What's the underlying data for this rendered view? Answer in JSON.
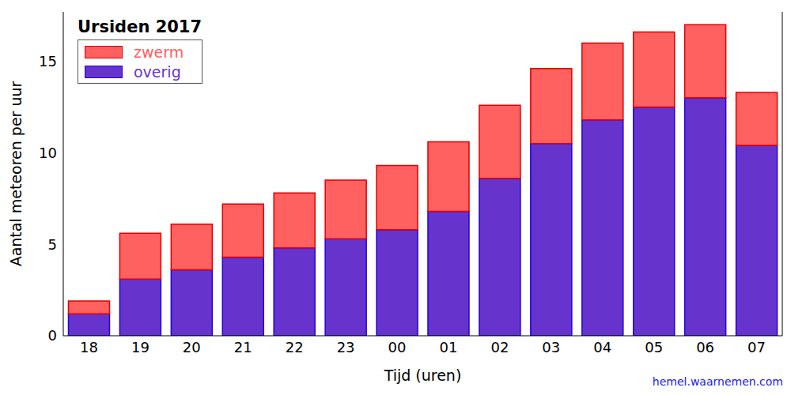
{
  "chart_data": {
    "type": "bar",
    "title": "Ursiden 2017",
    "x_label": "Tijd (uren)",
    "y_label": "Aantal meteoren per uur",
    "source": "hemel.waarnemen.com",
    "categories": [
      "18",
      "19",
      "20",
      "21",
      "22",
      "23",
      "00",
      "01",
      "02",
      "03",
      "04",
      "05",
      "06",
      "07"
    ],
    "series": [
      {
        "name": "zwerm",
        "color": "#ff6060",
        "values": [
          0.7,
          2.5,
          2.5,
          2.9,
          3.0,
          3.2,
          3.5,
          3.8,
          4.0,
          4.1,
          4.2,
          4.1,
          4.0,
          2.9
        ]
      },
      {
        "name": "overig",
        "color": "#6633cc",
        "values": [
          1.2,
          3.1,
          3.6,
          4.3,
          4.8,
          5.3,
          5.8,
          6.8,
          8.6,
          10.5,
          11.8,
          12.5,
          13.0,
          10.4
        ]
      }
    ],
    "ylim": [
      0,
      17.7
    ],
    "yticks": [
      0,
      5,
      10,
      15
    ],
    "stacked": true,
    "legend": "upper left",
    "grid": false
  }
}
